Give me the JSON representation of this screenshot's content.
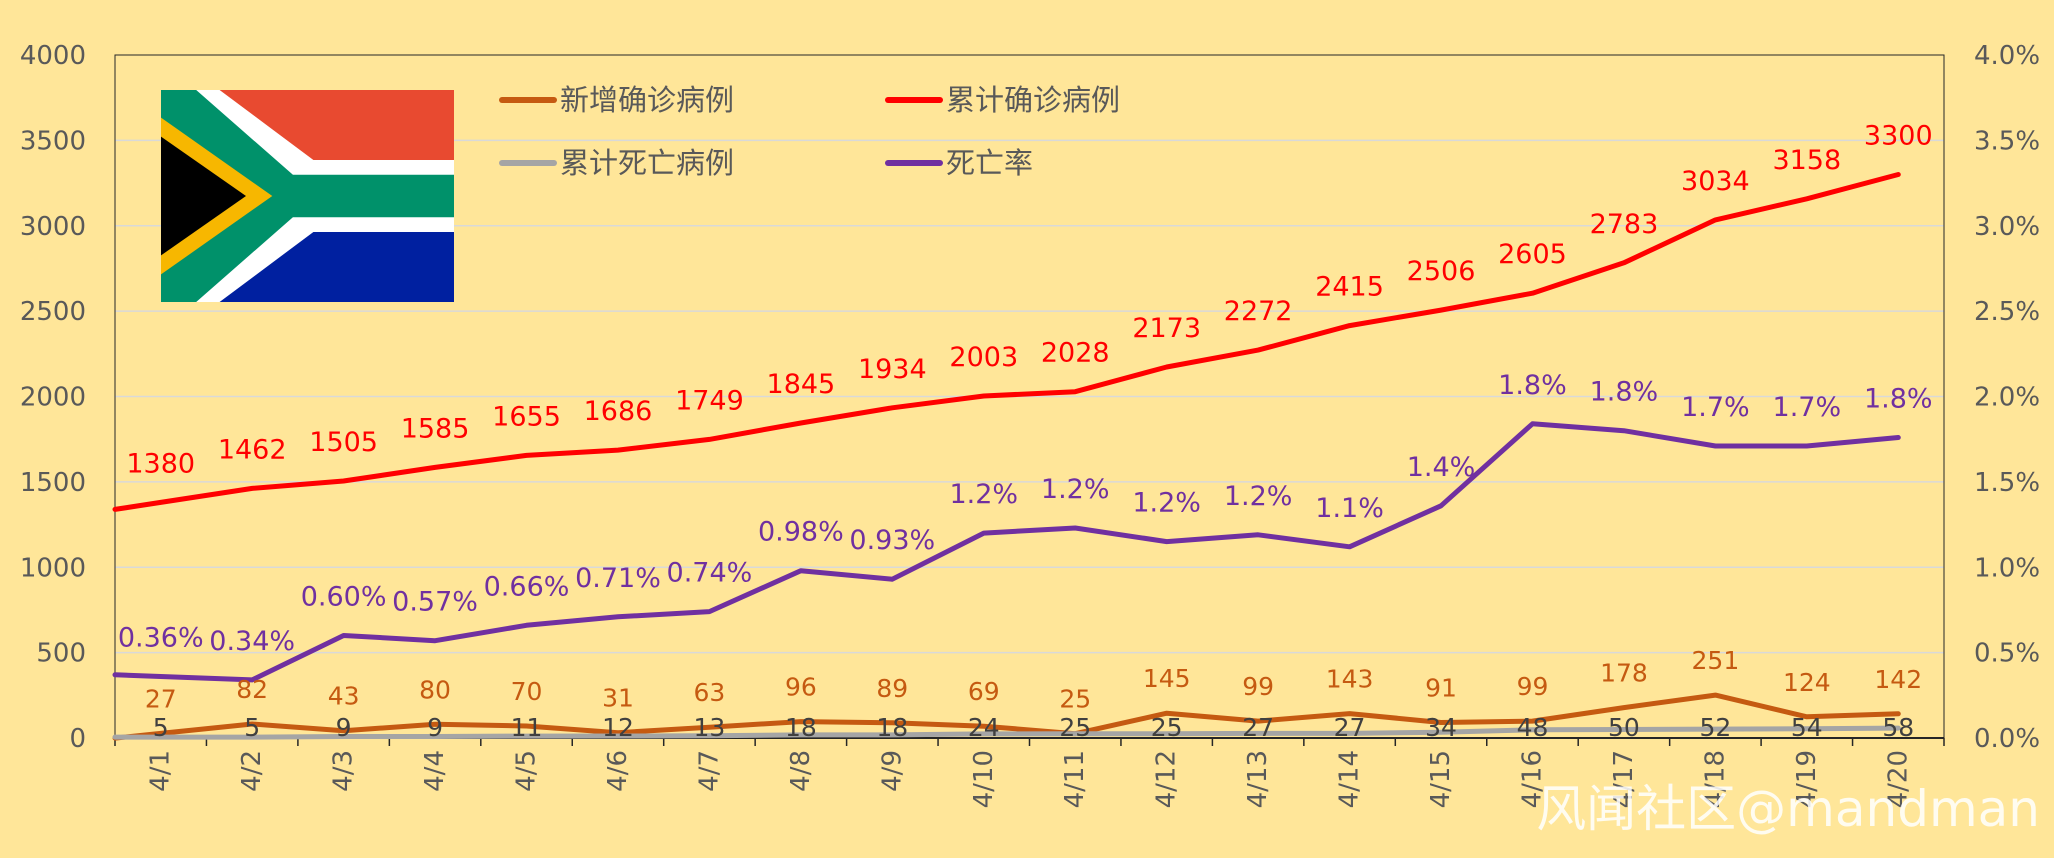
{
  "chart_data": {
    "type": "line",
    "title": "",
    "xlabel": "",
    "ylabel": "",
    "categories": [
      "4/1",
      "4/2",
      "4/3",
      "4/4",
      "4/5",
      "4/6",
      "4/7",
      "4/8",
      "4/9",
      "4/10",
      "4/11",
      "4/12",
      "4/13",
      "4/14",
      "4/15",
      "4/16",
      "4/17",
      "4/18",
      "4/19",
      "4/20"
    ],
    "ylim": [
      0,
      4000
    ],
    "y_ticks": [
      "0",
      "500",
      "1000",
      "1500",
      "2000",
      "2500",
      "3000",
      "3500",
      "4000"
    ],
    "y2lim": [
      0,
      0.04
    ],
    "y2_ticks": [
      "0.0%",
      "0.5%",
      "1.0%",
      "1.5%",
      "2.0%",
      "2.5%",
      "3.0%",
      "3.5%",
      "4.0%"
    ],
    "grid": true,
    "legend_position": "top-center",
    "series": [
      {
        "name": "新增确诊病例",
        "axis": "left",
        "color": "#C55A11",
        "values": [
          27,
          82,
          43,
          80,
          70,
          31,
          63,
          96,
          89,
          69,
          25,
          145,
          99,
          143,
          91,
          99,
          178,
          251,
          124,
          142
        ],
        "labels": [
          "27",
          "82",
          "43",
          "80",
          "70",
          "31",
          "63",
          "96",
          "89",
          "69",
          "25",
          "145",
          "99",
          "143",
          "91",
          "99",
          "178",
          "251",
          "124",
          "142"
        ]
      },
      {
        "name": "累计确诊病例",
        "axis": "left",
        "color": "#FF0000",
        "values": [
          1380,
          1462,
          1505,
          1585,
          1655,
          1686,
          1749,
          1845,
          1934,
          2003,
          2028,
          2173,
          2272,
          2415,
          2506,
          2605,
          2783,
          3034,
          3158,
          3300
        ],
        "labels": [
          "1380",
          "1462",
          "1505",
          "1585",
          "1655",
          "1686",
          "1749",
          "1845",
          "1934",
          "2003",
          "2028",
          "2173",
          "2272",
          "2415",
          "2506",
          "2605",
          "2783",
          "3034",
          "3158",
          "3300"
        ]
      },
      {
        "name": "累计死亡病例",
        "axis": "left",
        "color": "#A5A5A5",
        "values": [
          5,
          5,
          9,
          9,
          11,
          12,
          13,
          18,
          18,
          24,
          25,
          25,
          27,
          27,
          34,
          48,
          50,
          52,
          54,
          58
        ],
        "labels": [
          "5",
          "5",
          "9",
          "9",
          "11",
          "12",
          "13",
          "18",
          "18",
          "24",
          "25",
          "25",
          "27",
          "27",
          "34",
          "48",
          "50",
          "52",
          "54",
          "58"
        ]
      },
      {
        "name": "死亡率",
        "axis": "right",
        "color": "#7030A0",
        "values": [
          0.0036,
          0.0034,
          0.006,
          0.0057,
          0.0066,
          0.0071,
          0.0074,
          0.0098,
          0.0093,
          0.012,
          0.0123,
          0.0115,
          0.0119,
          0.0112,
          0.0136,
          0.0184,
          0.018,
          0.0171,
          0.0171,
          0.0176
        ],
        "labels": [
          "0.36%",
          "0.34%",
          "0.60%",
          "0.57%",
          "0.66%",
          "0.71%",
          "0.74%",
          "0.98%",
          "0.93%",
          "1.2%",
          "1.2%",
          "1.2%",
          "1.2%",
          "1.1%",
          "1.4%",
          "1.8%",
          "1.8%",
          "1.7%",
          "1.7%",
          "1.8%"
        ]
      }
    ]
  },
  "colors": {
    "background": "#FFE699",
    "gridline": "#D9D9D9",
    "axis_text": "#595959",
    "flag_red": "#E84A30",
    "flag_blue": "#0020A0",
    "flag_green": "#00916A",
    "flag_gold": "#F7B700"
  },
  "decor": {
    "flag": "south-africa-flag",
    "watermark": "风闻社区@mandman"
  }
}
